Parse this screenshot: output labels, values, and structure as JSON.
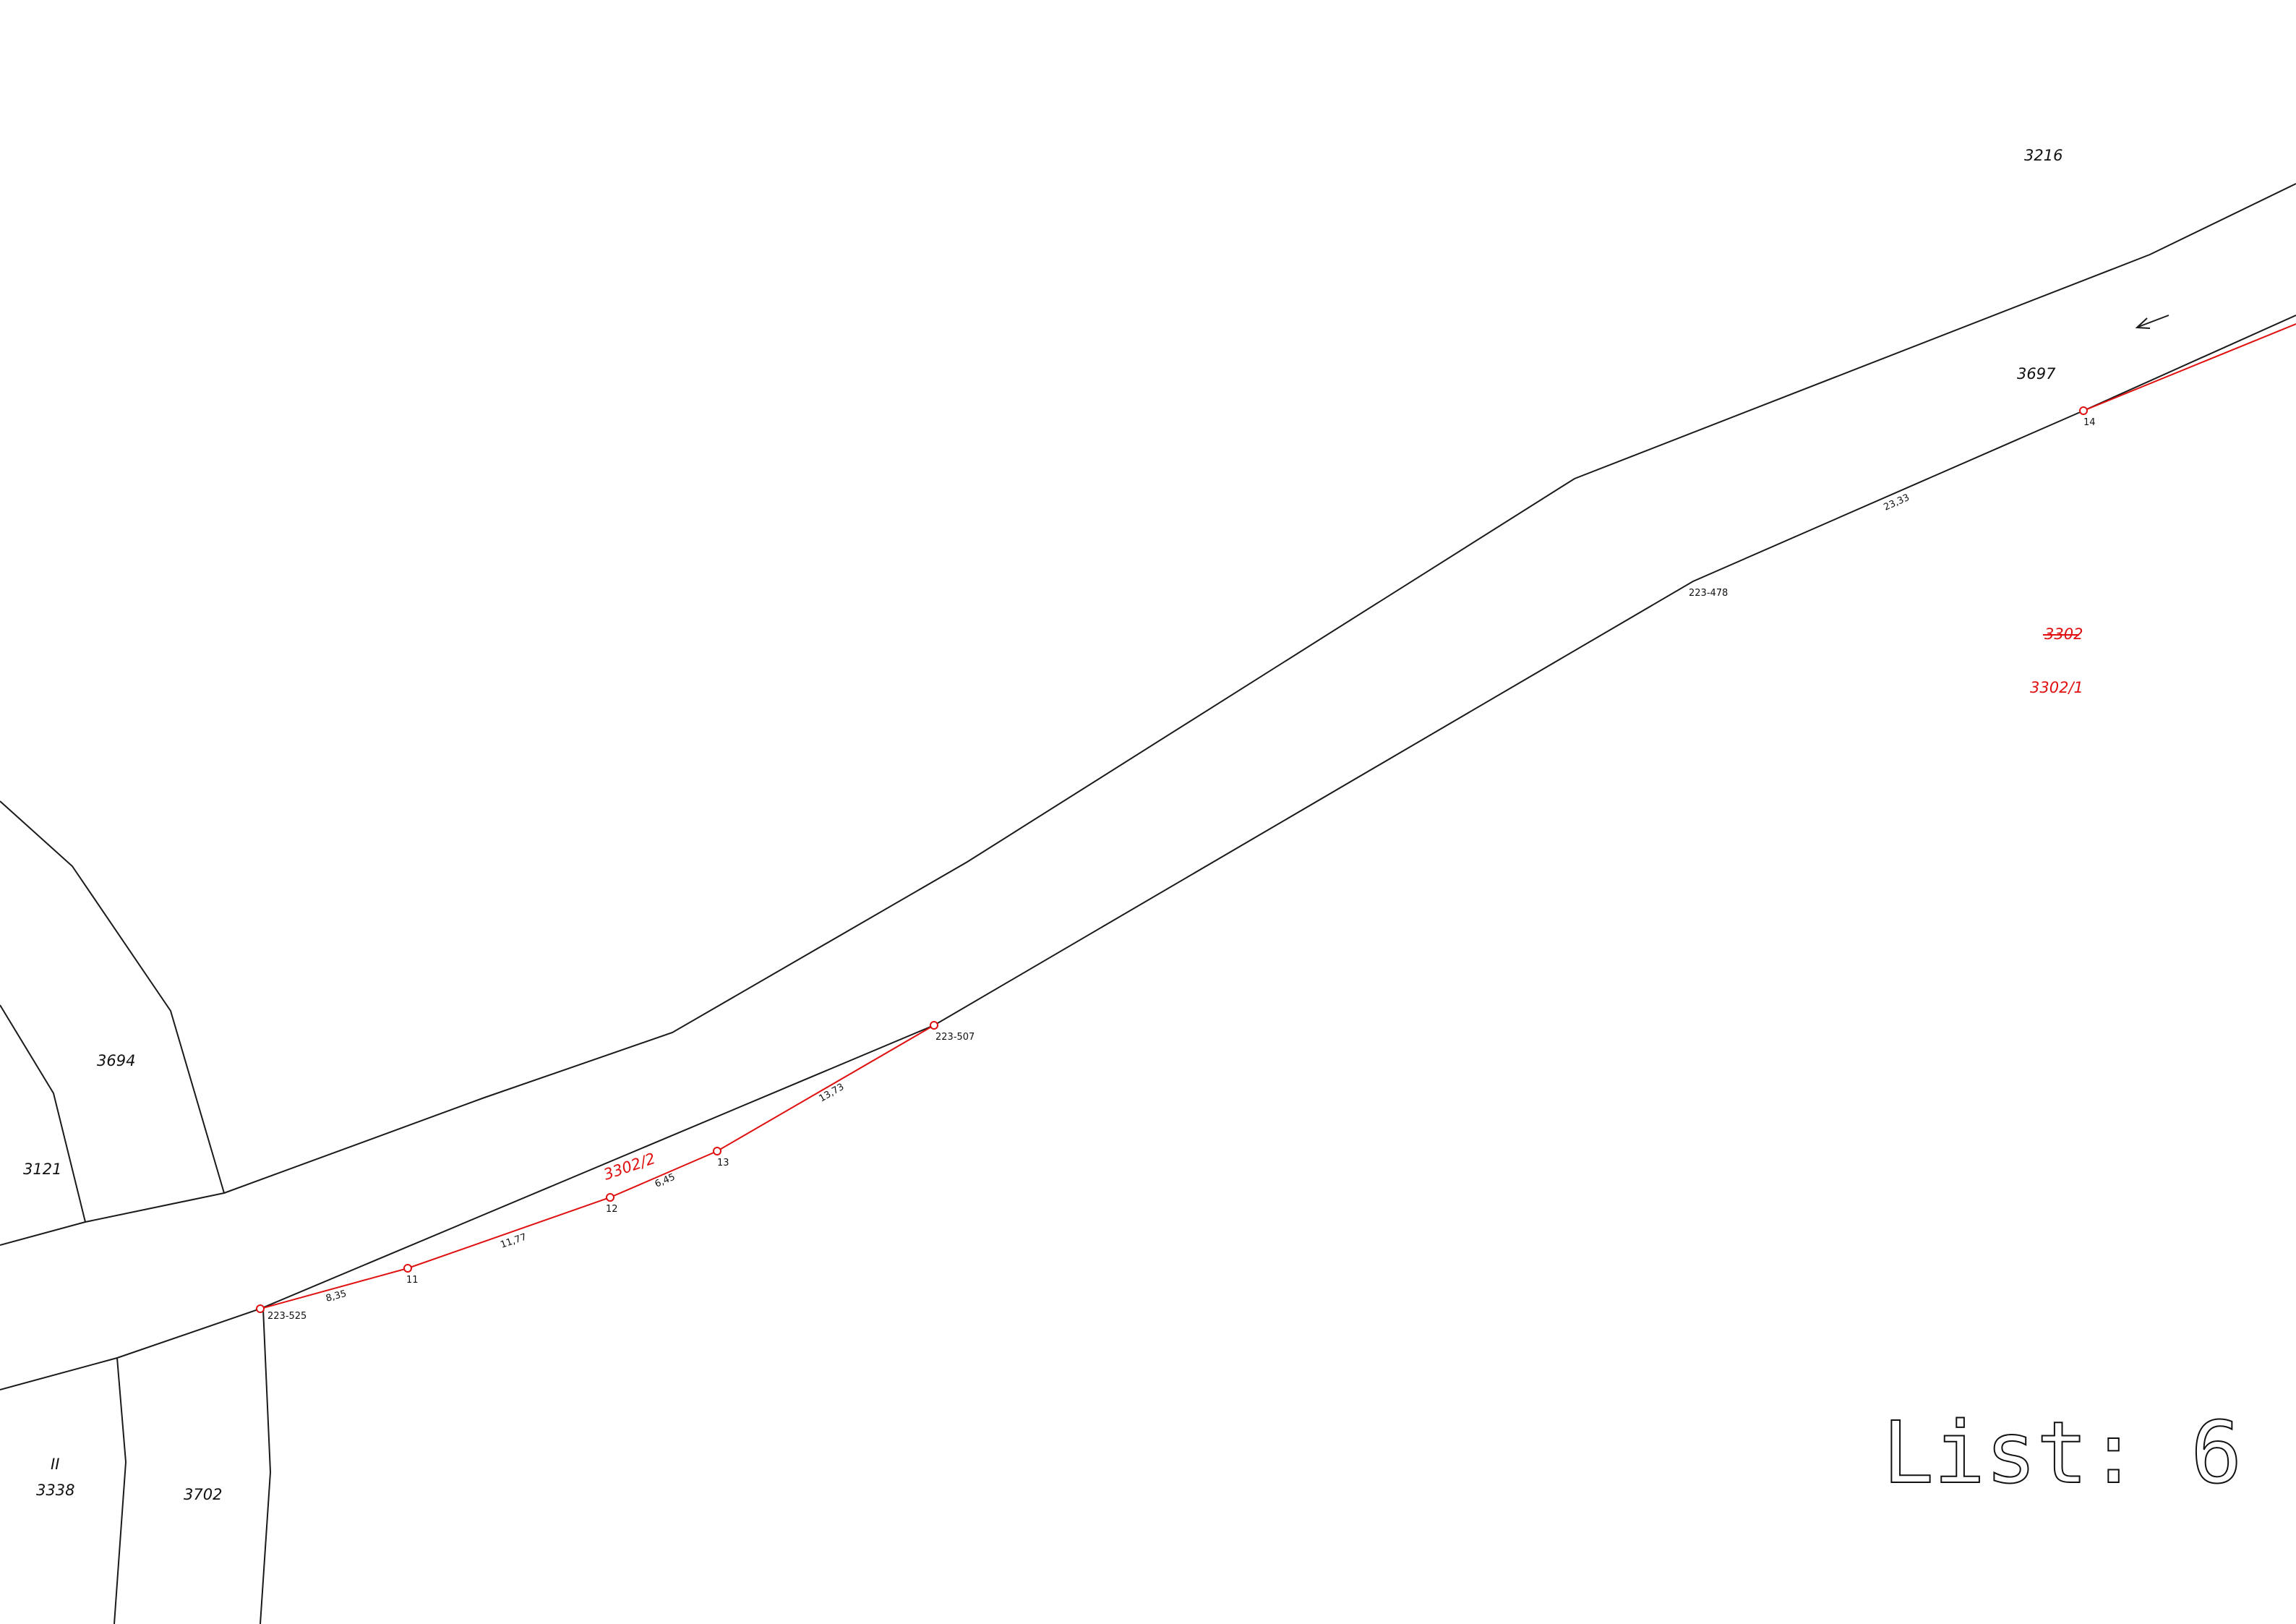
{
  "colors": {
    "existing": "#1a1a1a",
    "proposed": "#e01010"
  },
  "parcels": {
    "p3216": "3216",
    "p3697": "3697",
    "p3302_old": "3302",
    "p3302_1": "3302/1",
    "p3302_2": "3302/2",
    "p3694": "3694",
    "p3121": "3121",
    "p3338": "3338",
    "p3338_mark": "II",
    "p3702": "3702"
  },
  "points": {
    "pt14": "14",
    "pt223_478": "223-478",
    "pt223_507": "223-507",
    "pt13": "13",
    "pt12": "12",
    "pt11": "11",
    "pt223_525": "223-525"
  },
  "dimensions": {
    "d2333": "23,33",
    "d1373": "13,73",
    "d645": "6,45",
    "d1177": "11,77",
    "d835": "8,35"
  },
  "sheet": {
    "label": "List: 6"
  },
  "icons": {
    "direction": "arrow-left-icon"
  }
}
